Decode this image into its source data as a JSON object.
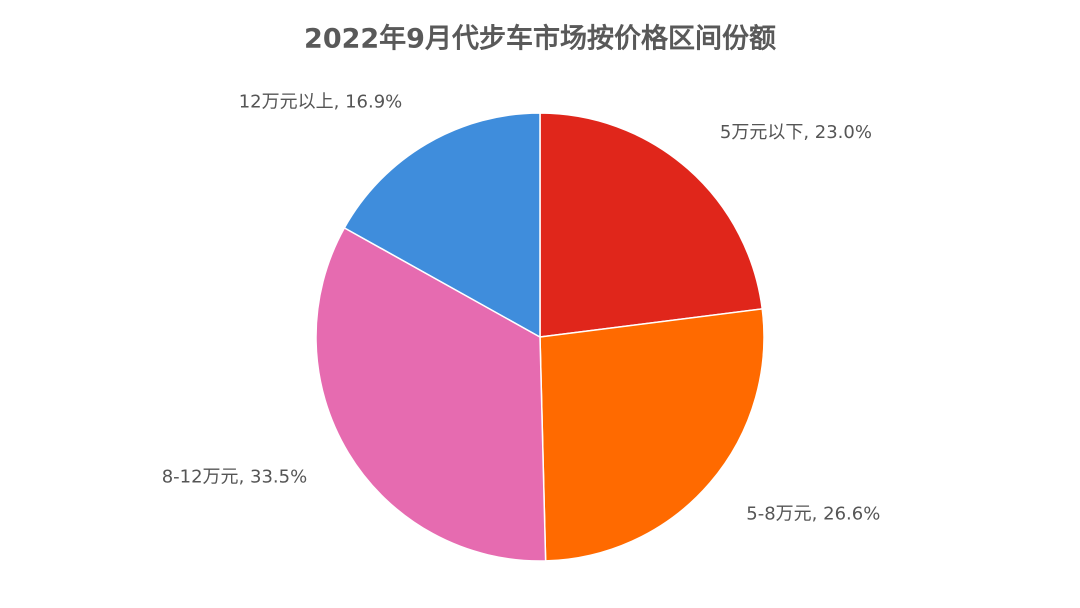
{
  "chart_data": {
    "type": "pie",
    "title": "2022年9月代步车市场按价格区间份额",
    "categories": [
      "5万元以下",
      "5-8万元",
      "8-12万元",
      "12万元以上"
    ],
    "values": [
      23.0,
      26.6,
      33.5,
      16.9
    ],
    "value_labels": [
      ", 23.0%",
      ", 26.6%",
      ", 33.5%",
      ", 16.9%"
    ],
    "colors": [
      "#e0261b",
      "#ff6a00",
      "#e66bb0",
      "#3f8ddc"
    ]
  }
}
